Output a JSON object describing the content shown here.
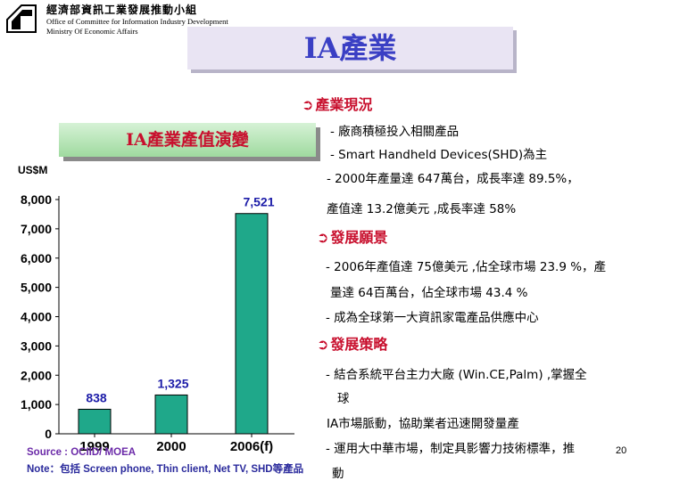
{
  "header": {
    "org_zh": "經濟部資訊工業發展推動小組",
    "org_en_line1": "Office of Committee for Information Industry Development",
    "org_en_line2": "Ministry Of Economic Affairs",
    "logo_icon": "ministry-logo-icon"
  },
  "title": "IA產業",
  "chart_box_title": "IA產業產值演變",
  "chart_data": {
    "type": "bar",
    "title": "IA產業產值演變",
    "ylabel": "US$M",
    "xlabel": "",
    "categories": [
      "1999",
      "2000",
      "2006(f)"
    ],
    "values": [
      838,
      1325,
      7521
    ],
    "value_labels": [
      "838",
      "1,325",
      "7,521"
    ],
    "ylim": [
      0,
      8000
    ],
    "yticks": [
      0,
      1000,
      2000,
      3000,
      4000,
      5000,
      6000,
      7000,
      8000
    ],
    "ytick_labels": [
      "0",
      "1,000",
      "2,000",
      "3,000",
      "4,000",
      "5,000",
      "6,000",
      "7,000",
      "8,000"
    ],
    "bar_color": "#1fa88a",
    "grid": false,
    "legend": "none"
  },
  "sections": {
    "status": {
      "heading": "產業現況",
      "lines": [
        "- 廠商積極投入相關產品",
        "- Smart Handheld Devices(SHD)為主",
        "- 2000年產量達 647萬台，成長率達 89.5%，",
        "產值達 13.2億美元 ,成長率達 58%"
      ]
    },
    "vision": {
      "heading": "發展願景",
      "lines": [
        "- 2006年產值達 75億美元 ,佔全球市場 23.9 %，產",
        "量達 64百萬台，佔全球市場 43.4 %",
        "- 成為全球第一大資訊家電產品供應中心"
      ]
    },
    "strategy": {
      "heading": "發展策略",
      "lines": [
        "- 結合系統平台主力大廠  (Win.CE,Palm) ,掌握全",
        "球",
        "IA市場脈動，協助業者迅速開發量產",
        "- 運用大中華市場，制定具影響力技術標準，推",
        "動"
      ]
    }
  },
  "footer": {
    "source": "Source : OCIID/ MOEA",
    "note": "Note：包括 Screen phone, Thin client, Net TV, SHD等產品",
    "page_number": "20"
  },
  "colors": {
    "accent_red": "#c8102e",
    "title_blue": "#3a3fc4",
    "bar_green": "#1fa88a",
    "value_blue": "#1c1ca8"
  }
}
